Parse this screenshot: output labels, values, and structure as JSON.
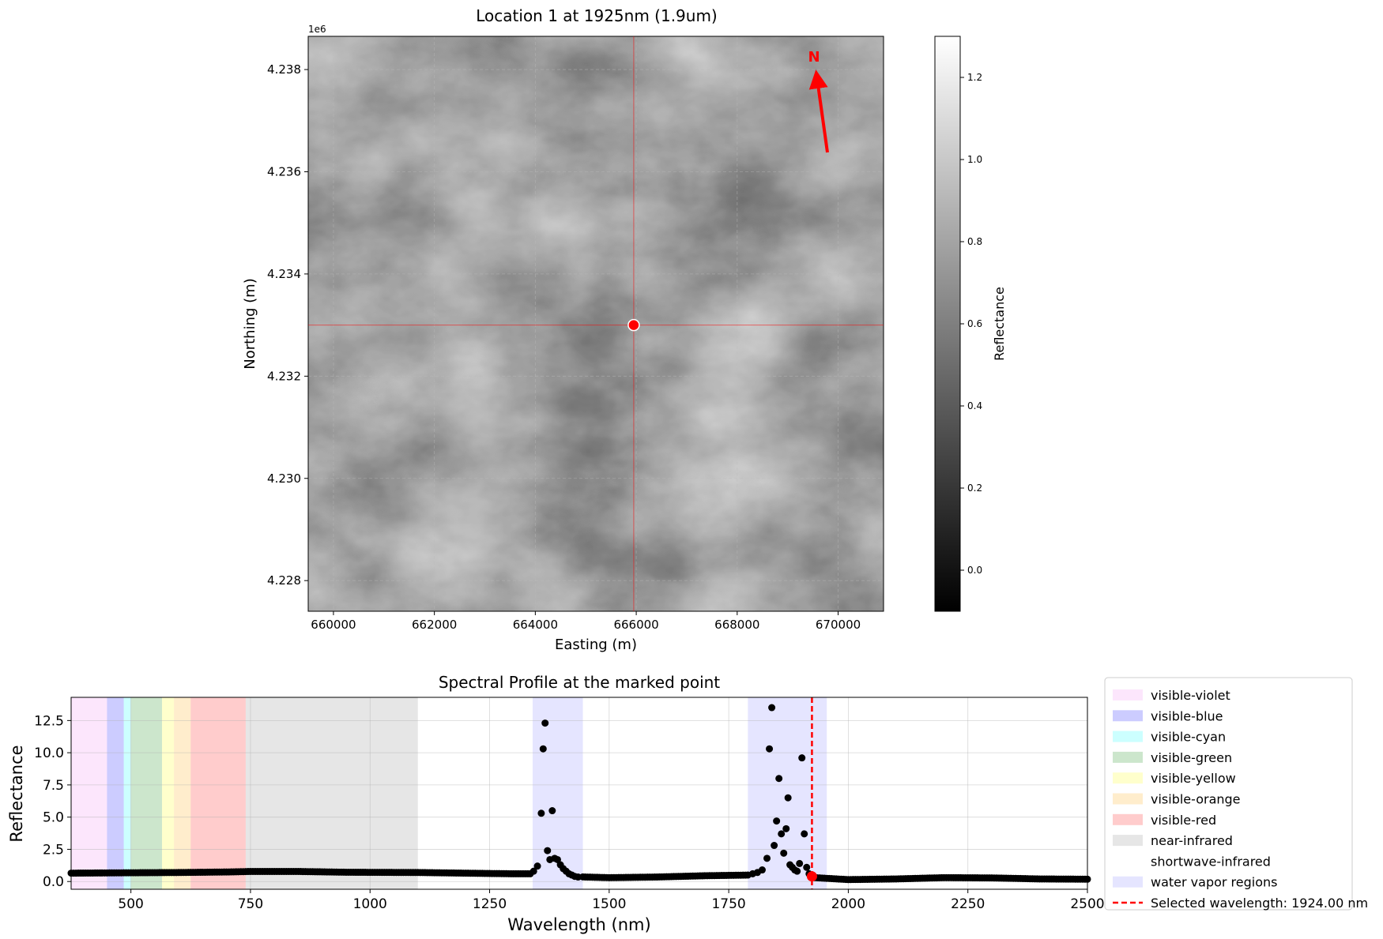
{
  "chart_data": [
    {
      "type": "heatmap",
      "title": "Location 1 at 1925nm (1.9um)",
      "xlabel": "Easting (m)",
      "ylabel": "Northing (m)",
      "xlim": [
        659500,
        670900
      ],
      "ylim": [
        4227400,
        4238650
      ],
      "x_ticks": [
        "660000",
        "662000",
        "664000",
        "666000",
        "668000",
        "670000"
      ],
      "y_ticks": [
        "4.228",
        "4.230",
        "4.232",
        "4.234",
        "4.236",
        "4.238"
      ],
      "y_offset_label": "1e6",
      "marked_point": {
        "x": 665950,
        "y": 4233000
      },
      "north_label": "N",
      "colorbar": {
        "label": "Reflectance",
        "range": [
          -0.1,
          1.3
        ],
        "ticks": [
          "0.0",
          "0.2",
          "0.4",
          "0.6",
          "0.8",
          "1.0",
          "1.2"
        ]
      },
      "grid": true,
      "colormap": "gray"
    },
    {
      "type": "scatter",
      "title": "Spectral Profile at the marked point",
      "xlabel": "Wavelength (nm)",
      "ylabel": "Reflectance",
      "xlim": [
        375,
        2500
      ],
      "ylim": [
        -0.6,
        14.3
      ],
      "x_ticks": [
        "500",
        "750",
        "1000",
        "1250",
        "1500",
        "1750",
        "2000",
        "2250",
        "2500"
      ],
      "y_ticks": [
        "0.0",
        "2.5",
        "5.0",
        "7.5",
        "10.0",
        "12.5"
      ],
      "grid": true,
      "bands": [
        {
          "name": "visible-violet",
          "from": 375,
          "to": 450,
          "color": "#ee82ee"
        },
        {
          "name": "visible-blue",
          "from": 450,
          "to": 485,
          "color": "#0000ff"
        },
        {
          "name": "visible-cyan",
          "from": 485,
          "to": 500,
          "color": "#00ffff"
        },
        {
          "name": "visible-green",
          "from": 500,
          "to": 565,
          "color": "#008000"
        },
        {
          "name": "visible-yellow",
          "from": 565,
          "to": 590,
          "color": "#ffff00"
        },
        {
          "name": "visible-orange",
          "from": 590,
          "to": 625,
          "color": "#ffa500"
        },
        {
          "name": "visible-red",
          "from": 625,
          "to": 740,
          "color": "#ff0000"
        },
        {
          "name": "near-infrared",
          "from": 740,
          "to": 1100,
          "color": "#808080"
        },
        {
          "name": "shortwave-infrared",
          "from": 1100,
          "to": 2500,
          "color": "#ffffff"
        }
      ],
      "water_vapor_regions": [
        [
          1340,
          1445
        ],
        [
          1790,
          1955
        ]
      ],
      "water_vapor_label": "water vapor regions",
      "water_vapor_color": "#0000ff",
      "selected_wavelength": 1924,
      "selected_label": "Selected wavelength: 1924.00 nm",
      "selected_value": 0.4,
      "baseline": [
        [
          375,
          0.65
        ],
        [
          500,
          0.68
        ],
        [
          600,
          0.7
        ],
        [
          700,
          0.74
        ],
        [
          750,
          0.78
        ],
        [
          850,
          0.78
        ],
        [
          950,
          0.72
        ],
        [
          1100,
          0.7
        ],
        [
          1200,
          0.65
        ],
        [
          1300,
          0.6
        ],
        [
          1335,
          0.6
        ],
        [
          1450,
          0.35
        ],
        [
          1500,
          0.3
        ],
        [
          1600,
          0.35
        ],
        [
          1700,
          0.45
        ],
        [
          1790,
          0.5
        ],
        [
          1930,
          0.3
        ],
        [
          2000,
          0.15
        ],
        [
          2100,
          0.2
        ],
        [
          2200,
          0.3
        ],
        [
          2300,
          0.28
        ],
        [
          2400,
          0.2
        ],
        [
          2500,
          0.18
        ]
      ],
      "spike_points": [
        [
          1342,
          0.8
        ],
        [
          1350,
          1.2
        ],
        [
          1358,
          5.3
        ],
        [
          1362,
          10.3
        ],
        [
          1366,
          12.3
        ],
        [
          1371,
          2.4
        ],
        [
          1376,
          1.7
        ],
        [
          1381,
          5.5
        ],
        [
          1386,
          1.8
        ],
        [
          1392,
          1.7
        ],
        [
          1398,
          1.3
        ],
        [
          1404,
          1.0
        ],
        [
          1410,
          0.8
        ],
        [
          1416,
          0.6
        ],
        [
          1422,
          0.5
        ],
        [
          1428,
          0.4
        ],
        [
          1435,
          0.35
        ],
        [
          1800,
          0.6
        ],
        [
          1810,
          0.7
        ],
        [
          1820,
          0.9
        ],
        [
          1830,
          1.8
        ],
        [
          1835,
          10.3
        ],
        [
          1840,
          13.5
        ],
        [
          1845,
          2.8
        ],
        [
          1850,
          4.7
        ],
        [
          1855,
          8.0
        ],
        [
          1860,
          3.7
        ],
        [
          1865,
          2.2
        ],
        [
          1870,
          4.1
        ],
        [
          1874,
          6.5
        ],
        [
          1878,
          1.3
        ],
        [
          1883,
          1.1
        ],
        [
          1888,
          0.9
        ],
        [
          1893,
          0.8
        ],
        [
          1898,
          1.4
        ],
        [
          1903,
          9.6
        ],
        [
          1908,
          3.7
        ],
        [
          1913,
          1.1
        ],
        [
          1918,
          0.6
        ]
      ]
    }
  ]
}
